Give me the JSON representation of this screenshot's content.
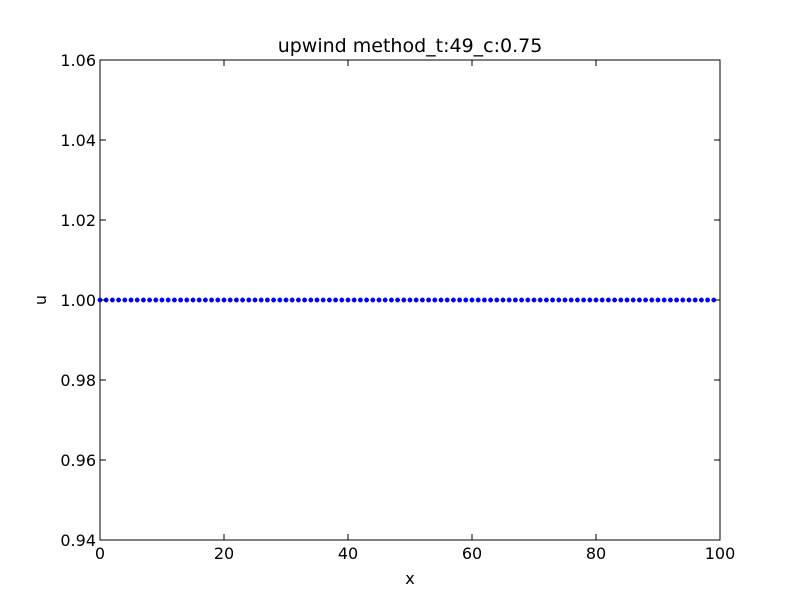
{
  "chart_data": {
    "type": "scatter",
    "title": "upwind method_t:49_c:0.75",
    "xlabel": "x",
    "ylabel": "u",
    "xlim": [
      0,
      100
    ],
    "ylim": [
      0.94,
      1.06
    ],
    "xticks": [
      "0",
      "20",
      "40",
      "60",
      "80",
      "100"
    ],
    "yticks": [
      "0.94",
      "0.96",
      "0.98",
      "1.00",
      "1.02",
      "1.04",
      "1.06"
    ],
    "grid": false,
    "series": [
      {
        "color": "#0000ff",
        "x": [
          0,
          1,
          2,
          3,
          4,
          5,
          6,
          7,
          8,
          9,
          10,
          11,
          12,
          13,
          14,
          15,
          16,
          17,
          18,
          19,
          20,
          21,
          22,
          23,
          24,
          25,
          26,
          27,
          28,
          29,
          30,
          31,
          32,
          33,
          34,
          35,
          36,
          37,
          38,
          39,
          40,
          41,
          42,
          43,
          44,
          45,
          46,
          47,
          48,
          49,
          50,
          51,
          52,
          53,
          54,
          55,
          56,
          57,
          58,
          59,
          60,
          61,
          62,
          63,
          64,
          65,
          66,
          67,
          68,
          69,
          70,
          71,
          72,
          73,
          74,
          75,
          76,
          77,
          78,
          79,
          80,
          81,
          82,
          83,
          84,
          85,
          86,
          87,
          88,
          89,
          90,
          91,
          92,
          93,
          94,
          95,
          96,
          97,
          98,
          99
        ],
        "y": [
          1,
          1,
          1,
          1,
          1,
          1,
          1,
          1,
          1,
          1,
          1,
          1,
          1,
          1,
          1,
          1,
          1,
          1,
          1,
          1,
          1,
          1,
          1,
          1,
          1,
          1,
          1,
          1,
          1,
          1,
          1,
          1,
          1,
          1,
          1,
          1,
          1,
          1,
          1,
          1,
          1,
          1,
          1,
          1,
          1,
          1,
          1,
          1,
          1,
          1,
          1,
          1,
          1,
          1,
          1,
          1,
          1,
          1,
          1,
          1,
          1,
          1,
          1,
          1,
          1,
          1,
          1,
          1,
          1,
          1,
          1,
          1,
          1,
          1,
          1,
          1,
          1,
          1,
          1,
          1,
          1,
          1,
          1,
          1,
          1,
          1,
          1,
          1,
          1,
          1,
          1,
          1,
          1,
          1,
          1,
          1,
          1,
          1,
          1,
          1
        ]
      }
    ]
  }
}
